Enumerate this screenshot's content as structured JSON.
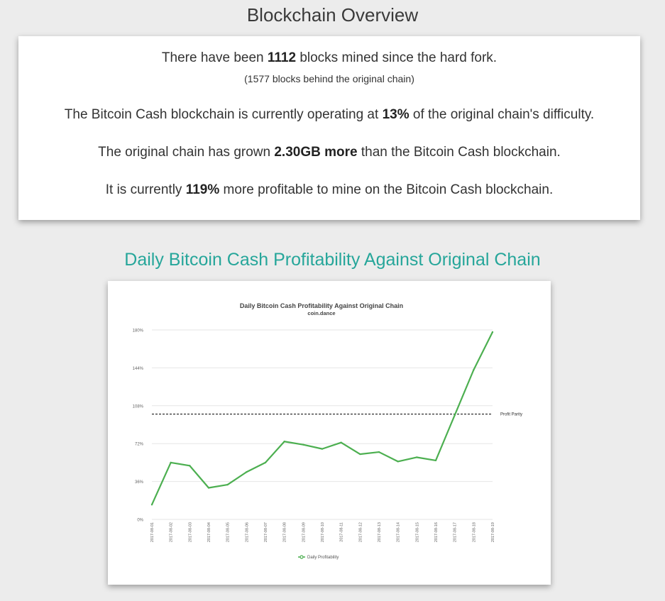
{
  "overview": {
    "title": "Blockchain Overview",
    "line1": {
      "pre": "There have been ",
      "value": "1112",
      "post": " blocks mined since the hard fork."
    },
    "line1_sub": "(1577 blocks behind the original chain)",
    "line2": {
      "pre": "The Bitcoin Cash blockchain is currently operating at ",
      "value": "13%",
      "post": " of the original chain's difficulty."
    },
    "line3": {
      "pre": "The original chain has grown ",
      "value": "2.30GB more",
      "post": " than the Bitcoin Cash blockchain."
    },
    "line4": {
      "pre": "It is currently ",
      "value": "119%",
      "post": " more profitable to mine on the Bitcoin Cash blockchain."
    }
  },
  "chart_section": {
    "heading": "Daily Bitcoin Cash Profitability Against Original Chain"
  },
  "chart_data": {
    "type": "line",
    "title": "Daily Bitcoin Cash Profitability Against Original Chain",
    "subtitle": "coin.dance",
    "xlabel": "",
    "ylabel": "",
    "ylim": [
      0,
      180
    ],
    "yticks": [
      0,
      36,
      72,
      108,
      144,
      180
    ],
    "ytick_labels": [
      "0%",
      "36%",
      "72%",
      "108%",
      "144%",
      "180%"
    ],
    "grid": true,
    "legend_position": "bottom",
    "categories": [
      "2017-08-01",
      "2017-08-02",
      "2017-08-03",
      "2017-08-04",
      "2017-08-05",
      "2017-08-06",
      "2017-08-07",
      "2017-08-08",
      "2017-08-09",
      "2017-08-10",
      "2017-08-11",
      "2017-08-12",
      "2017-08-13",
      "2017-08-14",
      "2017-08-15",
      "2017-08-16",
      "2017-08-17",
      "2017-08-18",
      "2017-08-19"
    ],
    "series": [
      {
        "name": "Daily Profitability",
        "color": "#4caf50",
        "values": [
          14,
          54,
          51,
          30,
          33,
          45,
          54,
          74,
          71,
          67,
          73,
          62,
          64,
          55,
          59,
          56,
          99,
          142,
          178
        ]
      }
    ],
    "reference_line": {
      "label": "Profit Parity",
      "value": 100
    }
  }
}
